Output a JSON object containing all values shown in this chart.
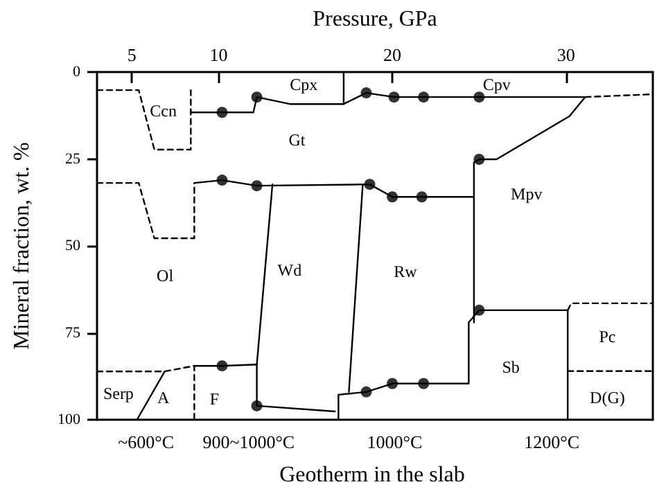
{
  "chart_data": {
    "type": "line",
    "xlabel": "Pressure, GPa",
    "ylabel": "Mineral fraction, wt. %",
    "xlim": [
      3,
      35
    ],
    "xticks": [
      5,
      10,
      20,
      30
    ],
    "ylim": [
      100,
      0
    ],
    "yticks": [
      0,
      25,
      50,
      75,
      100
    ],
    "series": [
      {
        "color": "#000000",
        "line_style": "solid",
        "x": [
          8.4,
          12.0,
          12.2,
          14.1,
          17.2,
          18.5,
          20.1,
          31.1
        ],
        "values": [
          11.6,
          11.6,
          7.2,
          9.2,
          9.2,
          6.0,
          7.2,
          7.2
        ]
      },
      {
        "color": "#000000",
        "line_style": "dashed",
        "x": [
          31.1,
          34.9
        ],
        "values": [
          7.2,
          6.4
        ]
      },
      {
        "color": "#000000",
        "line_style": "solid",
        "x": [
          17.2,
          17.2
        ],
        "values": [
          9.2,
          0
        ]
      },
      {
        "color": "#000000",
        "line_style": "dashed",
        "x": [
          3,
          5.4,
          6.3,
          8.4,
          8.4
        ],
        "values": [
          5.2,
          5.2,
          22.3,
          22.3,
          5.2
        ]
      },
      {
        "color": "#000000",
        "line_style": "dashed",
        "x": [
          3,
          5.4,
          6.3,
          8.6,
          8.6
        ],
        "values": [
          31.9,
          31.9,
          47.8,
          47.8,
          31.9
        ]
      },
      {
        "color": "#000000",
        "line_style": "solid",
        "x": [
          8.6,
          10.2,
          12.2,
          18.7,
          20.0,
          24.7
        ],
        "values": [
          31.9,
          31.1,
          32.7,
          32.3,
          35.9,
          35.9
        ]
      },
      {
        "color": "#000000",
        "line_style": "solid",
        "x": [
          24.7,
          24.7,
          25.0,
          26.0,
          30.2,
          31.1
        ],
        "values": [
          72.0,
          26.0,
          25.1,
          25.1,
          12.7,
          7.2
        ]
      },
      {
        "color": "#000000",
        "line_style": "solid",
        "x": [
          13.1,
          12.2
        ],
        "values": [
          32.3,
          84.1
        ]
      },
      {
        "color": "#000000",
        "line_style": "solid",
        "x": [
          18.3,
          17.5
        ],
        "values": [
          32.3,
          92.0
        ]
      },
      {
        "color": "#000000",
        "line_style": "solid",
        "x": [
          8.6,
          10.2,
          12.2,
          12.2,
          16.7
        ],
        "values": [
          84.5,
          84.5,
          84.1,
          96.0,
          97.6
        ]
      },
      {
        "color": "#000000",
        "line_style": "solid",
        "x": [
          16.9,
          16.9,
          18.5,
          20.0,
          24.4,
          24.4,
          25.0,
          30.1,
          30.1
        ],
        "values": [
          100,
          92.8,
          92.0,
          89.6,
          89.6,
          72.0,
          68.5,
          68.5,
          100
        ]
      },
      {
        "color": "#000000",
        "line_style": "dashed",
        "x": [
          3,
          6.9,
          8.6,
          8.6
        ],
        "values": [
          86.1,
          86.1,
          84.5,
          100
        ]
      },
      {
        "color": "#000000",
        "line_style": "solid",
        "x": [
          6.9,
          5.3
        ],
        "values": [
          86.1,
          100
        ]
      },
      {
        "color": "#000000",
        "line_style": "dashed",
        "x": [
          30.1,
          30.3,
          35
        ],
        "values": [
          68.5,
          66.5,
          66.5
        ]
      },
      {
        "color": "#000000",
        "line_style": "dashed",
        "x": [
          30.1,
          35
        ],
        "values": [
          86,
          86
        ]
      },
      {
        "type": "scatter",
        "marker": "circle",
        "color": "#000000",
        "x": [
          10.2,
          12.2,
          18.5,
          20.1,
          21.8,
          25.0,
          10.2,
          12.2,
          18.7,
          20.0,
          21.7,
          25.0,
          10.2,
          12.2,
          18.5,
          20.0,
          21.8,
          25.0
        ],
        "values": [
          11.6,
          7.2,
          6.0,
          7.2,
          7.2,
          7.2,
          31.1,
          32.7,
          32.3,
          35.9,
          35.9,
          25.1,
          84.5,
          96.0,
          92.0,
          89.6,
          89.6,
          68.5
        ]
      }
    ],
    "annotations": [
      "Ccn",
      "Cpx",
      "Gt",
      "Cpv",
      "Mpv",
      "Ol",
      "Wd",
      "Rw",
      "Sb",
      "Pc",
      "D(G)",
      "Serp",
      "A",
      "F",
      "~600°C",
      "900~1000°C",
      "1000°C",
      "1200°C",
      "Geotherm in the slab"
    ]
  }
}
